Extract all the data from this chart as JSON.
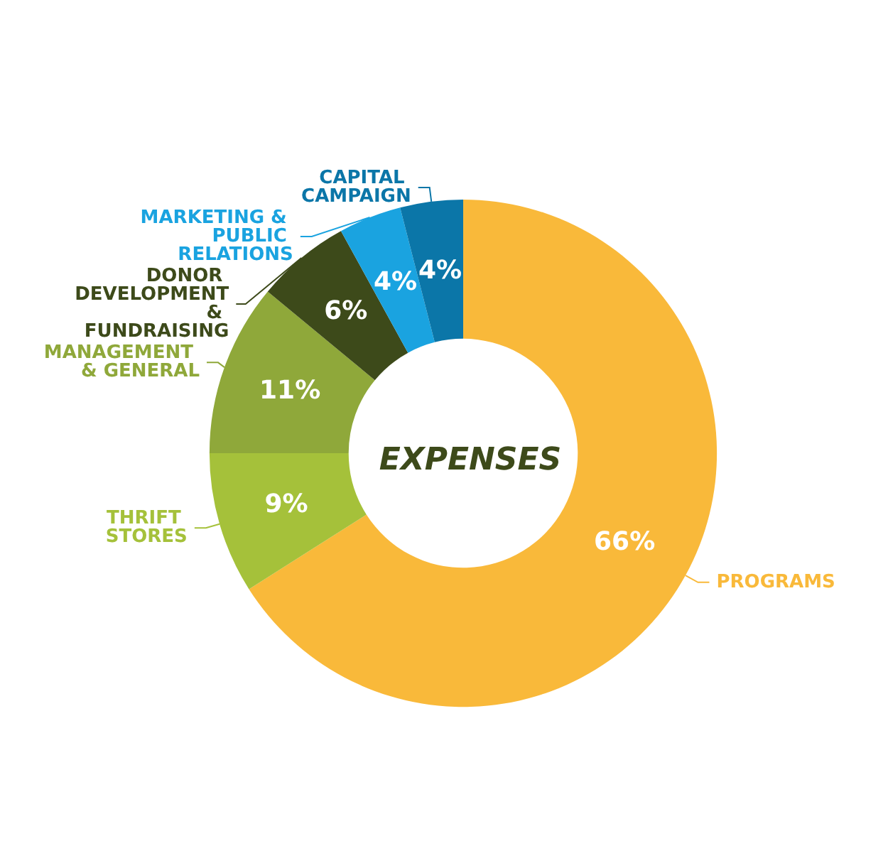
{
  "chart_data": {
    "type": "donut",
    "title": "EXPENSES",
    "categories": [
      "PROGRAMS",
      "THRIFT STORES",
      "MANAGEMENT & GENERAL",
      "DONOR DEVELOPMENT & FUNDRAISING",
      "MARKETING & PUBLIC RELATIONS",
      "CAPITAL CAMPAIGN"
    ],
    "values": [
      66,
      9,
      11,
      6,
      4,
      4
    ],
    "value_labels": [
      "66%",
      "9%",
      "11%",
      "6%",
      "4%",
      "4%"
    ],
    "colors": [
      "#f9b93a",
      "#a5c13a",
      "#8fa83a",
      "#3d4a1a",
      "#1aa3e0",
      "#0b76a8"
    ]
  }
}
